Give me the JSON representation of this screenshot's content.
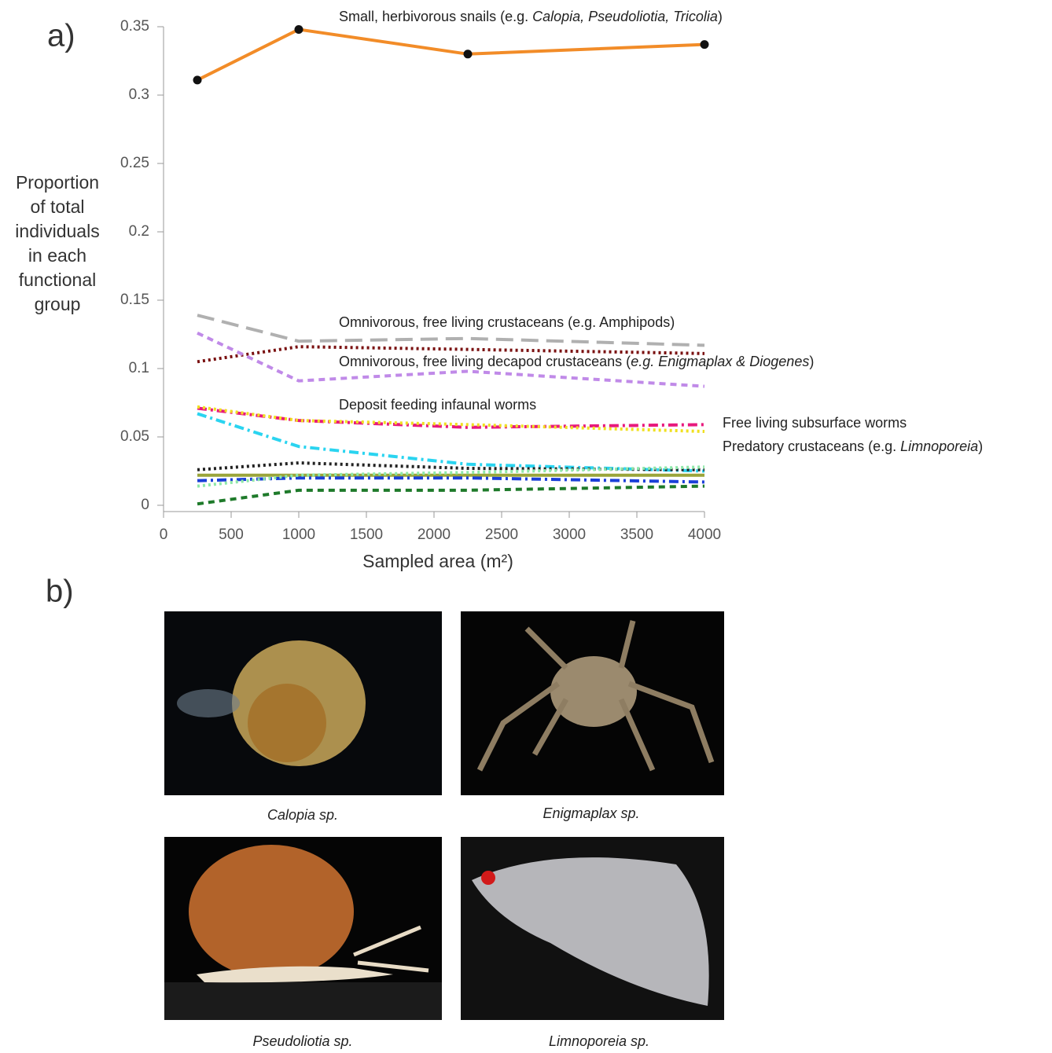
{
  "panel_a_label": "a)",
  "panel_b_label": "b)",
  "chart_data": {
    "type": "line",
    "ylabel": [
      "Proportion",
      "of total",
      "individuals",
      "in each",
      "functional",
      "group"
    ],
    "xlabel": "Sampled area (m²)",
    "x": [
      250,
      1000,
      2250,
      4000
    ],
    "xlim": [
      0,
      4000
    ],
    "xticks": [
      0,
      500,
      1000,
      1500,
      2000,
      2500,
      3000,
      3500,
      4000
    ],
    "ylim": [
      0,
      0.35
    ],
    "yticks": [
      0,
      0.05,
      0.1,
      0.15,
      0.2,
      0.25,
      0.3,
      0.35
    ],
    "series": [
      {
        "color": "#f28c28",
        "dash": "solid",
        "markers": true,
        "values": [
          0.311,
          0.348,
          0.33,
          0.337
        ]
      },
      {
        "color": "#b0b0b0",
        "dash": "longdash",
        "values": [
          0.139,
          0.12,
          0.122,
          0.117
        ]
      },
      {
        "color": "#7a1010",
        "dash": "dotted",
        "values": [
          0.105,
          0.116,
          0.114,
          0.111
        ]
      },
      {
        "color": "#c08ae8",
        "dash": "dashed",
        "values": [
          0.126,
          0.091,
          0.098,
          0.087
        ]
      },
      {
        "color": "#e8197d",
        "dash": "dashdot",
        "values": [
          0.071,
          0.062,
          0.057,
          0.059
        ]
      },
      {
        "color": "#f0e020",
        "dash": "dotted",
        "values": [
          0.072,
          0.062,
          0.059,
          0.054
        ]
      },
      {
        "color": "#2ad4f0",
        "dash": "dashdot",
        "values": [
          0.067,
          0.043,
          0.03,
          0.025
        ]
      },
      {
        "color": "#222222",
        "dash": "dotted",
        "values": [
          0.026,
          0.031,
          0.027,
          0.026
        ]
      },
      {
        "color": "#9aa53a",
        "dash": "solid",
        "values": [
          0.022,
          0.022,
          0.022,
          0.022
        ]
      },
      {
        "color": "#1a3fd8",
        "dash": "dashdot",
        "values": [
          0.018,
          0.02,
          0.02,
          0.017
        ]
      },
      {
        "color": "#8ee8a8",
        "dash": "dotted",
        "values": [
          0.014,
          0.022,
          0.024,
          0.028
        ]
      },
      {
        "color": "#1e7a2a",
        "dash": "dashed",
        "values": [
          0.001,
          0.011,
          0.011,
          0.014
        ]
      }
    ],
    "annotations": [
      [
        {
          "text": "Small, herbivorous snails (e.g. "
        },
        {
          "text": "Calopia, Pseudoliotia, Tricolia",
          "italic": true
        },
        {
          "text": ")"
        }
      ],
      [
        {
          "text": "Omnivorous, free living crustaceans (e.g. Amphipods)"
        }
      ],
      [
        {
          "text": "Omnivorous, free living decapod crustaceans ("
        },
        {
          "text": "e.g. Enigmaplax & Diogenes",
          "italic": true
        },
        {
          "text": ")"
        }
      ],
      [
        {
          "text": "Deposit feeding infaunal worms"
        }
      ],
      [
        {
          "text": "Free living subsurface worms"
        }
      ],
      [
        {
          "text": "Predatory crustaceans (e.g. "
        },
        {
          "text": "Limnoporeia",
          "italic": true
        },
        {
          "text": ")"
        }
      ]
    ]
  },
  "photos": [
    {
      "caption": "Calopia sp."
    },
    {
      "caption": "Enigmaplax sp."
    },
    {
      "caption": "Pseudoliotia sp."
    },
    {
      "caption": "Limnoporeia sp."
    }
  ]
}
